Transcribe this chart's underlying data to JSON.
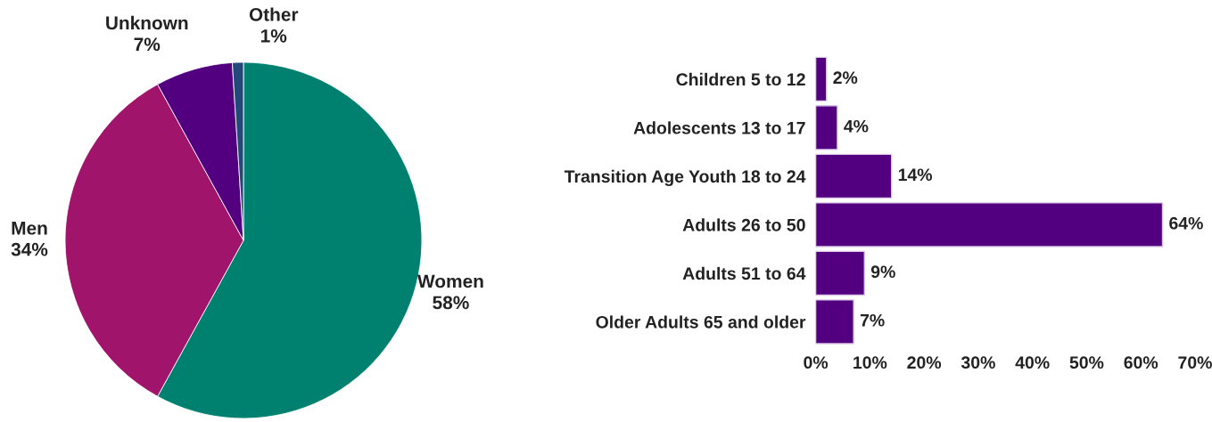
{
  "chart_data": [
    {
      "type": "pie",
      "categories": [
        "Women",
        "Men",
        "Unknown",
        "Other"
      ],
      "values": [
        58,
        34,
        7,
        1
      ],
      "colors": [
        "#00806f",
        "#a0156b",
        "#520080",
        "#23497a"
      ],
      "value_labels": [
        "58%",
        "34%",
        "7%",
        "1%"
      ]
    },
    {
      "type": "bar",
      "orientation": "horizontal",
      "categories": [
        "Children 5 to 12",
        "Adolescents 13 to 17",
        "Transition Age Youth 18 to 24",
        "Adults 26 to 50",
        "Adults 51 to 64",
        "Older Adults 65 and older"
      ],
      "series": [
        {
          "color": "#520080",
          "values": [
            2,
            4,
            14,
            64,
            9,
            7
          ],
          "value_labels": [
            "2%",
            "4%",
            "14%",
            "64%",
            "9%",
            "7%"
          ]
        }
      ],
      "xlim": [
        0,
        70
      ],
      "xticks": [
        {
          "value": 0,
          "label": "0%"
        },
        {
          "value": 10,
          "label": "10%"
        },
        {
          "value": 20,
          "label": "20%"
        },
        {
          "value": 30,
          "label": "30%"
        },
        {
          "value": 40,
          "label": "40%"
        },
        {
          "value": 50,
          "label": "50%"
        },
        {
          "value": 60,
          "label": "60%"
        },
        {
          "value": 70,
          "label": "70%"
        }
      ],
      "grid": false
    }
  ]
}
